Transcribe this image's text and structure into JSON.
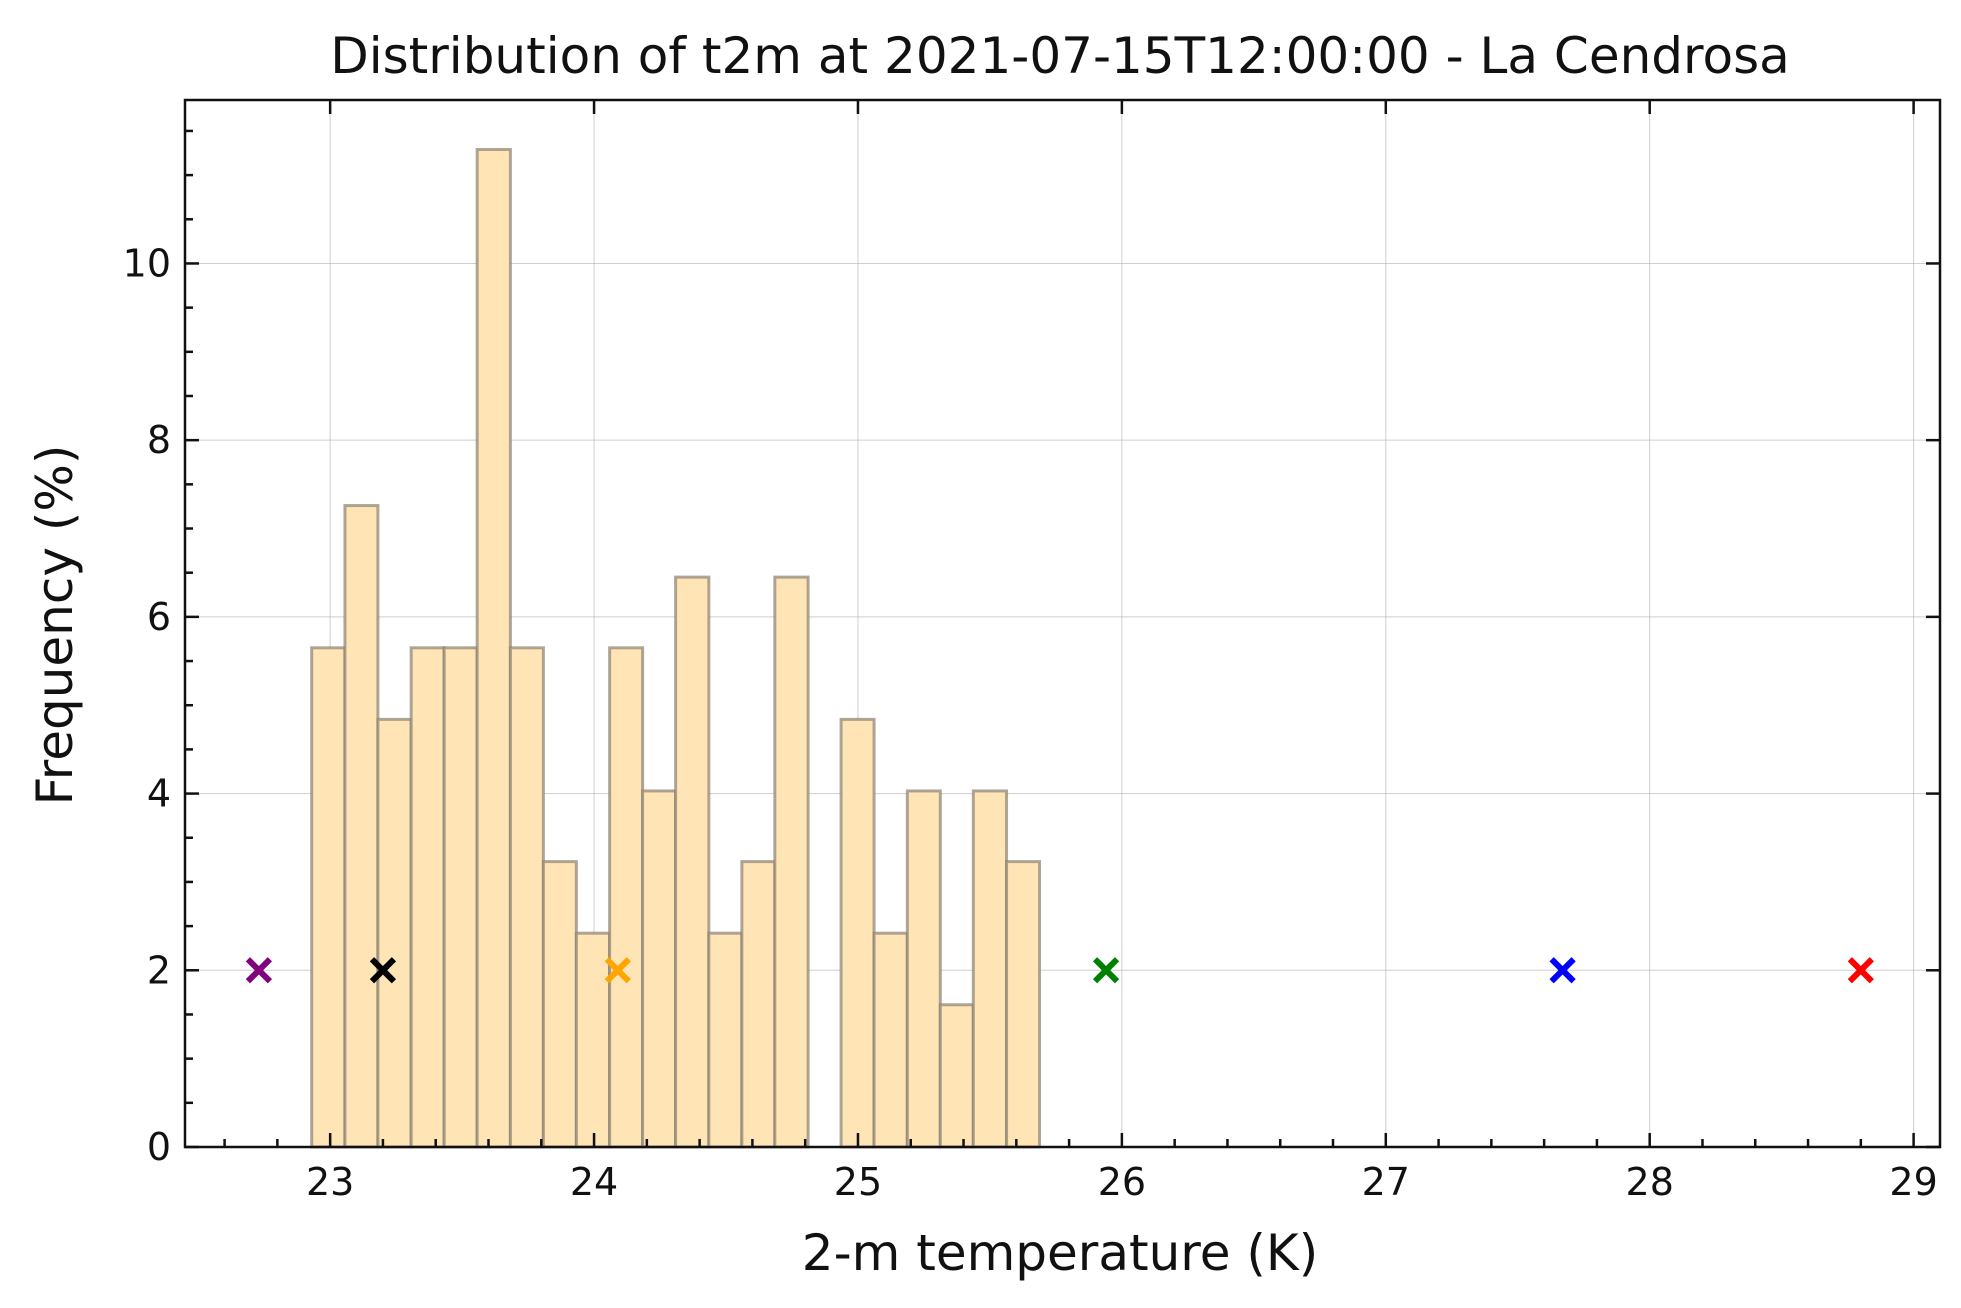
{
  "chart_data": {
    "type": "bar",
    "title": "Distribution of t2m at 2021-07-15T12:00:00 - La Cendrosa",
    "xlabel": "2-m temperature (K)",
    "ylabel": "Frequency (%)",
    "xlim": [
      22.45,
      29.1
    ],
    "ylim": [
      0,
      11.85
    ],
    "grid": true,
    "x_ticks": [
      23,
      24,
      25,
      26,
      27,
      28,
      29
    ],
    "y_ticks": [
      0,
      2,
      4,
      6,
      8,
      10
    ],
    "x_tick_labels": [
      "23",
      "24",
      "25",
      "26",
      "27",
      "28",
      "29"
    ],
    "y_tick_labels": [
      "0",
      "2",
      "4",
      "6",
      "8",
      "10"
    ],
    "histogram": {
      "bin_edges": [
        22.93,
        23.056,
        23.181,
        23.307,
        23.432,
        23.557,
        23.683,
        23.808,
        23.933,
        24.059,
        24.184,
        24.309,
        24.435,
        24.56,
        24.685,
        24.811,
        24.936,
        25.061,
        25.187,
        25.312,
        25.437,
        25.563,
        25.688
      ],
      "values": [
        5.65,
        7.26,
        4.84,
        5.65,
        5.65,
        11.29,
        5.65,
        3.23,
        2.42,
        5.65,
        4.03,
        6.45,
        2.42,
        3.23,
        6.45,
        0,
        4.84,
        2.42,
        4.03,
        1.61,
        4.03,
        3.23
      ],
      "fill_color": "#ffe4b5",
      "edge_color": "#8c8272"
    },
    "markers": [
      {
        "x": 22.73,
        "y": 2,
        "color": "#800080",
        "symbol": "x"
      },
      {
        "x": 23.2,
        "y": 2,
        "color": "#000000",
        "symbol": "x"
      },
      {
        "x": 24.09,
        "y": 2,
        "color": "#ffa500",
        "symbol": "x"
      },
      {
        "x": 25.94,
        "y": 2,
        "color": "#008000",
        "symbol": "x"
      },
      {
        "x": 27.67,
        "y": 2,
        "color": "#0000ff",
        "symbol": "x"
      },
      {
        "x": 28.8,
        "y": 2,
        "color": "#ff0000",
        "symbol": "x"
      }
    ]
  }
}
